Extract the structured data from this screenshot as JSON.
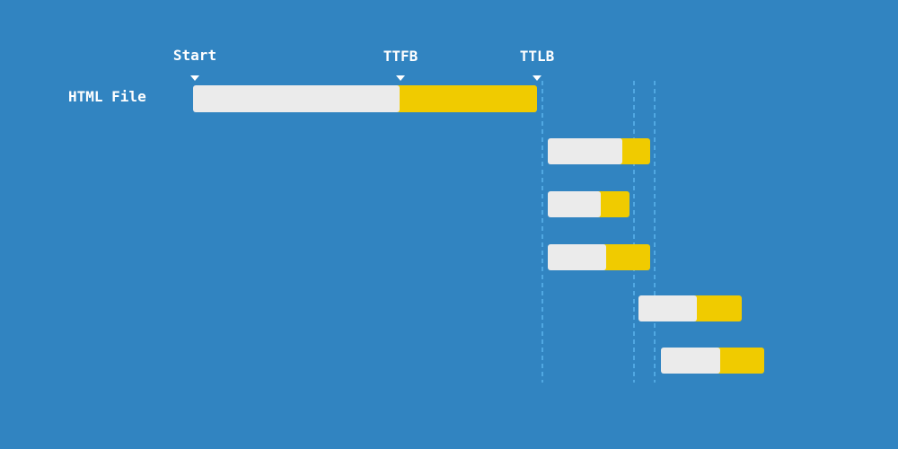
{
  "markers": [
    {
      "label": "Start"
    },
    {
      "label": "TTFB"
    },
    {
      "label": "TTLB"
    }
  ],
  "rows": [
    {
      "label": "HTML File"
    }
  ]
}
